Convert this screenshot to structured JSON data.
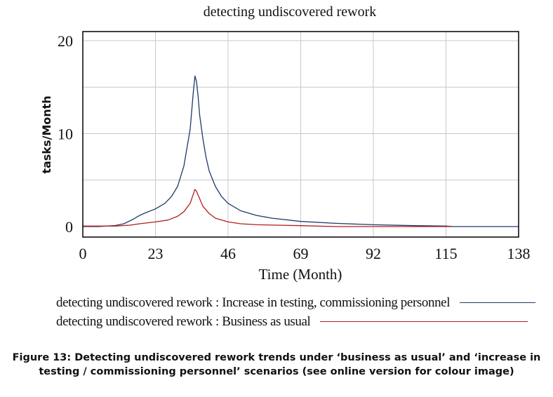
{
  "chart_data": {
    "type": "line",
    "title": "detecting undiscovered rework",
    "xlabel": "Time (Month)",
    "ylabel": "tasks/Month",
    "xlim": [
      0,
      138
    ],
    "ylim": [
      -1,
      21
    ],
    "x_ticks": [
      "0",
      "23",
      "46",
      "69",
      "92",
      "115",
      "138"
    ],
    "y_ticks": [
      "0",
      "10",
      "20"
    ],
    "grid": true,
    "legend_position": "bottom",
    "series": [
      {
        "name": "detecting undiscovered rework : Increase in testing, commissioning personnel",
        "color": "#1f3a68",
        "points": [
          [
            0,
            0
          ],
          [
            5,
            0
          ],
          [
            10,
            0.1
          ],
          [
            13,
            0.3
          ],
          [
            16,
            0.8
          ],
          [
            18,
            1.2
          ],
          [
            20,
            1.5
          ],
          [
            23,
            1.9
          ],
          [
            26,
            2.5
          ],
          [
            28,
            3.2
          ],
          [
            30,
            4.3
          ],
          [
            32,
            6.5
          ],
          [
            34,
            10.5
          ],
          [
            35,
            14.5
          ],
          [
            35.5,
            16.2
          ],
          [
            36,
            15.6
          ],
          [
            36.5,
            14.0
          ],
          [
            37,
            12.0
          ],
          [
            38,
            9.5
          ],
          [
            39,
            7.5
          ],
          [
            40,
            6.0
          ],
          [
            42,
            4.3
          ],
          [
            44,
            3.2
          ],
          [
            46,
            2.5
          ],
          [
            50,
            1.7
          ],
          [
            55,
            1.2
          ],
          [
            60,
            0.9
          ],
          [
            69,
            0.55
          ],
          [
            80,
            0.35
          ],
          [
            92,
            0.2
          ],
          [
            105,
            0.1
          ],
          [
            115,
            0.05
          ],
          [
            117,
            0
          ],
          [
            138,
            0
          ]
        ]
      },
      {
        "name": "detecting undiscovered rework : Business as usual",
        "color": "#b01e1e",
        "points": [
          [
            0,
            0.05
          ],
          [
            10,
            0.05
          ],
          [
            15,
            0.15
          ],
          [
            18,
            0.3
          ],
          [
            23,
            0.5
          ],
          [
            27,
            0.7
          ],
          [
            30,
            1.1
          ],
          [
            32,
            1.6
          ],
          [
            34,
            2.5
          ],
          [
            35,
            3.5
          ],
          [
            35.5,
            4.0
          ],
          [
            36,
            3.8
          ],
          [
            37,
            3.0
          ],
          [
            38,
            2.2
          ],
          [
            40,
            1.4
          ],
          [
            42,
            0.9
          ],
          [
            46,
            0.5
          ],
          [
            50,
            0.3
          ],
          [
            55,
            0.2
          ],
          [
            69,
            0.1
          ],
          [
            80,
            0
          ],
          [
            92,
            0
          ],
          [
            115,
            0
          ],
          [
            117,
            0
          ]
        ]
      }
    ]
  },
  "caption": {
    "line1": "Figure 13: Detecting undiscovered rework trends under ‘business as usual’ and ‘increase in",
    "line2": "testing / commissioning personnel’ scenarios (see online version for colour image)"
  }
}
